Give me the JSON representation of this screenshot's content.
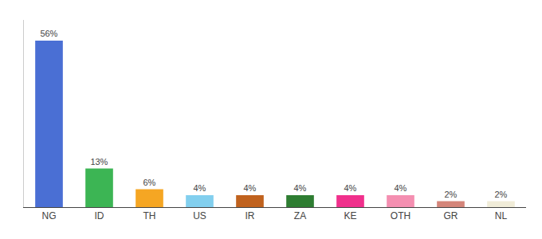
{
  "chart_data": {
    "type": "bar",
    "categories": [
      "NG",
      "ID",
      "TH",
      "US",
      "IR",
      "ZA",
      "KE",
      "OTH",
      "GR",
      "NL"
    ],
    "values": [
      56,
      13,
      6,
      4,
      4,
      4,
      4,
      4,
      2,
      2
    ],
    "value_labels": [
      "56%",
      "13%",
      "6%",
      "4%",
      "4%",
      "4%",
      "4%",
      "4%",
      "2%",
      "2%"
    ],
    "colors": [
      "#4a6fd4",
      "#3cb554",
      "#f5a623",
      "#82cfee",
      "#c0621e",
      "#2e7d32",
      "#f0308c",
      "#f48fb1",
      "#d4857a",
      "#f0ecd8"
    ],
    "ylim": [
      0,
      63
    ],
    "grid": false,
    "data_labels": true,
    "tick_labels": "x"
  }
}
